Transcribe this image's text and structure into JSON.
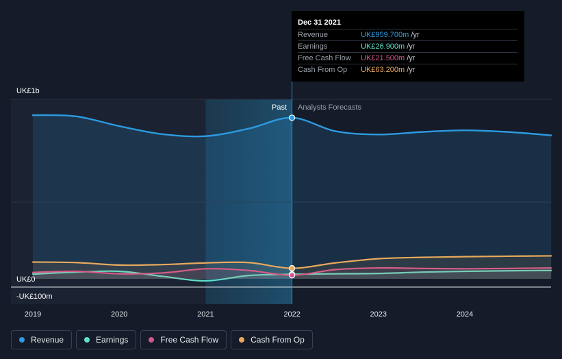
{
  "chart_data": {
    "type": "line",
    "x_ticks": [
      "2019",
      "2020",
      "2021",
      "2022",
      "2023",
      "2024"
    ],
    "y_axis_labels": {
      "top": "UK£1b",
      "zero": "UK£0",
      "bottom": "-UK£100m"
    },
    "y_range_millions": [
      -100,
      1100
    ],
    "regions": {
      "past": "Past",
      "forecast": "Analysts Forecasts"
    },
    "divider_year": 2022.0,
    "highlight_start_year": 2021.0,
    "series": [
      {
        "name": "Revenue",
        "color": "#2d9ae0",
        "points": [
          [
            2019.0,
            975
          ],
          [
            2019.5,
            968
          ],
          [
            2020.0,
            910
          ],
          [
            2020.5,
            862
          ],
          [
            2021.0,
            850
          ],
          [
            2021.5,
            895
          ],
          [
            2022.0,
            960
          ],
          [
            2022.5,
            880
          ],
          [
            2023.0,
            860
          ],
          [
            2023.5,
            875
          ],
          [
            2024.0,
            885
          ],
          [
            2024.5,
            875
          ],
          [
            2025.0,
            855
          ]
        ]
      },
      {
        "name": "Earnings",
        "color": "#5fe0c9",
        "points": [
          [
            2019.0,
            28
          ],
          [
            2019.5,
            40
          ],
          [
            2020.0,
            45
          ],
          [
            2020.5,
            15
          ],
          [
            2021.0,
            -12
          ],
          [
            2021.5,
            20
          ],
          [
            2022.0,
            27
          ],
          [
            2022.5,
            30
          ],
          [
            2023.0,
            32
          ],
          [
            2023.5,
            40
          ],
          [
            2024.0,
            45
          ],
          [
            2024.5,
            48
          ],
          [
            2025.0,
            50
          ]
        ]
      },
      {
        "name": "Free Cash Flow",
        "color": "#d4558c",
        "points": [
          [
            2019.0,
            38
          ],
          [
            2019.5,
            45
          ],
          [
            2020.0,
            30
          ],
          [
            2020.5,
            35
          ],
          [
            2021.0,
            60
          ],
          [
            2021.5,
            50
          ],
          [
            2022.0,
            21.5
          ],
          [
            2022.5,
            55
          ],
          [
            2023.0,
            65
          ],
          [
            2023.5,
            62
          ],
          [
            2024.0,
            60
          ],
          [
            2024.5,
            62
          ],
          [
            2025.0,
            65
          ]
        ]
      },
      {
        "name": "Cash From Op",
        "color": "#e8a95c",
        "points": [
          [
            2019.0,
            100
          ],
          [
            2019.5,
            97
          ],
          [
            2020.0,
            82
          ],
          [
            2020.5,
            85
          ],
          [
            2021.0,
            95
          ],
          [
            2021.5,
            97
          ],
          [
            2022.0,
            63.2
          ],
          [
            2022.5,
            95
          ],
          [
            2023.0,
            120
          ],
          [
            2023.5,
            128
          ],
          [
            2024.0,
            132
          ],
          [
            2024.5,
            135
          ],
          [
            2025.0,
            137
          ]
        ]
      }
    ]
  },
  "tooltip": {
    "date": "Dec 31 2021",
    "rows": [
      {
        "name": "Revenue",
        "value": "UK£959.700m",
        "unit": "/yr",
        "color": "#2d9ae0"
      },
      {
        "name": "Earnings",
        "value": "UK£26.900m",
        "unit": "/yr",
        "color": "#5fe0c9"
      },
      {
        "name": "Free Cash Flow",
        "value": "UK£21.500m",
        "unit": "/yr",
        "color": "#d4558c"
      },
      {
        "name": "Cash From Op",
        "value": "UK£63.200m",
        "unit": "/yr",
        "color": "#e8a95c"
      }
    ]
  },
  "legend": [
    {
      "label": "Revenue",
      "color": "#2d9ae0"
    },
    {
      "label": "Earnings",
      "color": "#5fe0c9"
    },
    {
      "label": "Free Cash Flow",
      "color": "#d4558c"
    },
    {
      "label": "Cash From Op",
      "color": "#e8a95c"
    }
  ]
}
